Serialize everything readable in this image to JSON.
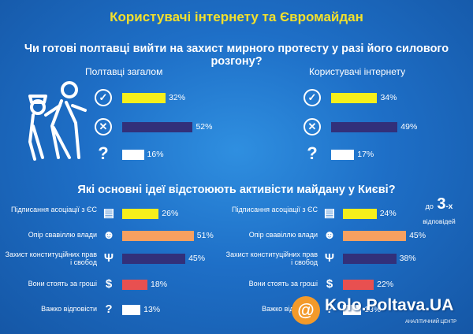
{
  "header": {
    "title": "Користувачі інтернету  та Євромайдан",
    "question1": "Чи готові полтавці вийти на захист мирного протесту у разі його силового розгону?",
    "question2": "Які основні ідеї відстоюють активісти майдану у Києві?"
  },
  "note": {
    "prefix": "до",
    "num": "3",
    "suffix": "-х",
    "rest": "відповідей"
  },
  "watermark": {
    "site": "Kolo.Poltava.UA",
    "org": "АНАЛІТИЧНИЙ ЦЕНТР"
  },
  "colors": {
    "yellow": "#f6ef1b",
    "navy": "#32307a",
    "white": "#ffffff",
    "orange": "#f7a060",
    "red": "#e85050",
    "title": "#f3e02c"
  },
  "chart_data": [
    {
      "type": "bar",
      "title": "Полтавці загалом",
      "categories": [
        "так",
        "ні",
        "не знаю"
      ],
      "icons": [
        "check-icon",
        "cross-icon",
        "question-icon"
      ],
      "values": [
        32,
        52,
        16
      ],
      "labels": [
        "32%",
        "52%",
        "16%"
      ]
    },
    {
      "type": "bar",
      "title": "Користувачі інтернету",
      "categories": [
        "так",
        "ні",
        "не знаю"
      ],
      "icons": [
        "check-icon",
        "cross-icon",
        "question-icon"
      ],
      "values": [
        34,
        49,
        17
      ],
      "labels": [
        "34%",
        "49%",
        "17%"
      ]
    },
    {
      "type": "bar",
      "title": "",
      "categories": [
        "Підписання асоціації з ЄС",
        "Опір свавіллю влади",
        "Захист конституційних прав і свобод",
        "Вони стоять за гроші",
        "Важко відповісти"
      ],
      "icons": [
        "document-icon",
        "crowd-icon",
        "trident-icon",
        "dollar-icon",
        "question-icon"
      ],
      "values": [
        26,
        51,
        45,
        18,
        13
      ],
      "labels": [
        "26%",
        "51%",
        "45%",
        "18%",
        "13%"
      ]
    },
    {
      "type": "bar",
      "title": "",
      "categories": [
        "Підписання асоціації з ЄС",
        "Опір свавіллю влади",
        "Захист конституційних прав і свобод",
        "Вони стоять за гроші",
        "Важко відповісти"
      ],
      "icons": [
        "document-icon",
        "crowd-icon",
        "trident-icon",
        "dollar-icon",
        "question-icon"
      ],
      "values": [
        24,
        45,
        38,
        22,
        13
      ],
      "labels": [
        "24%",
        "45%",
        "38%",
        "22%",
        "13%"
      ]
    }
  ]
}
